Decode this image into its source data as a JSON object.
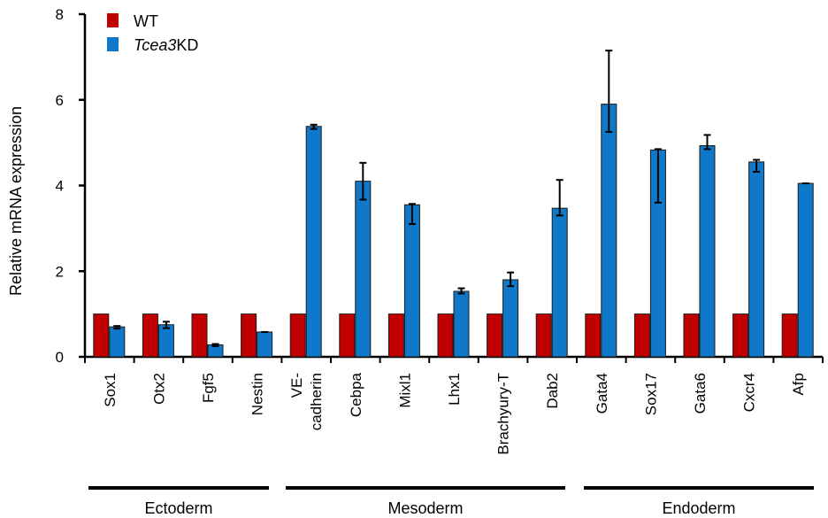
{
  "chart_data": {
    "type": "bar",
    "ylabel": "Relative mRNA expression",
    "ylim": [
      0,
      8
    ],
    "yticks": [
      "0",
      "2",
      "4",
      "6",
      "8"
    ],
    "categories": [
      [
        "Sox1"
      ],
      [
        "Otx2"
      ],
      [
        "Fgf5"
      ],
      [
        "Nestin"
      ],
      [
        "VE-",
        "cadherin"
      ],
      [
        "Cebpa"
      ],
      [
        "Mixl1"
      ],
      [
        "Lhx1"
      ],
      [
        "Brachyury-T"
      ],
      [
        "Dab2"
      ],
      [
        "Gata4"
      ],
      [
        "Sox17"
      ],
      [
        "Gata6"
      ],
      [
        "Cxcr4"
      ],
      [
        "Afp"
      ]
    ],
    "series": [
      {
        "name": "WT",
        "italic_prefix": "",
        "color": "#c00000",
        "values": [
          1,
          1,
          1,
          1,
          1,
          1,
          1,
          1,
          1,
          1,
          1,
          1,
          1,
          1,
          1
        ],
        "err_low": [
          0,
          0,
          0,
          0,
          0,
          0,
          0,
          0,
          0,
          0,
          0,
          0,
          0,
          0,
          0
        ],
        "err_high": [
          0,
          0,
          0,
          0,
          0,
          0,
          0,
          0,
          0,
          0,
          0,
          0,
          0,
          0,
          0
        ]
      },
      {
        "name": "Tcea3KD",
        "italic_prefix": "Tcea3",
        "suffix": "KD",
        "color": "#0f78c8",
        "values": [
          0.7,
          0.75,
          0.28,
          0.58,
          5.38,
          4.1,
          3.55,
          1.53,
          1.8,
          3.47,
          5.9,
          4.83,
          4.93,
          4.55,
          4.05
        ],
        "err_low": [
          0.66,
          0.67,
          0.25,
          0.58,
          5.32,
          3.67,
          3.1,
          1.48,
          1.65,
          3.3,
          5.25,
          3.6,
          4.85,
          4.32,
          4.05
        ],
        "err_high": [
          0.72,
          0.82,
          0.3,
          0.58,
          5.42,
          4.53,
          3.57,
          1.6,
          1.97,
          4.13,
          7.15,
          4.85,
          5.18,
          4.6,
          4.05
        ]
      }
    ],
    "groups": [
      {
        "label": "Ectoderm",
        "from": 0,
        "to": 3
      },
      {
        "label": "Mesoderm",
        "from": 4,
        "to": 9
      },
      {
        "label": "Endoderm",
        "from": 10,
        "to": 14
      }
    ],
    "legend_position": "top-left",
    "grid": false
  }
}
